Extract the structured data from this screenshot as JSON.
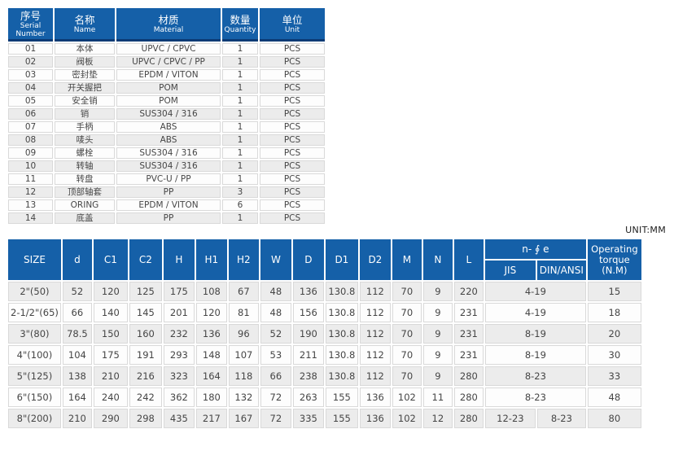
{
  "page": {
    "unit_label": "UNIT:MM",
    "accent_blue": "#1560a8",
    "header_underline_navy": "#0c3b75",
    "stripe_gray": "#ececec"
  },
  "parts_table": {
    "headers": [
      {
        "zh": "序号",
        "en": "Serial Number"
      },
      {
        "zh": "名称",
        "en": "Name"
      },
      {
        "zh": "材质",
        "en": "Material"
      },
      {
        "zh": "数量",
        "en": "Quantity"
      },
      {
        "zh": "单位",
        "en": "Unit"
      }
    ],
    "rows": [
      [
        "01",
        "本体",
        "UPVC / CPVC",
        "1",
        "PCS"
      ],
      [
        "02",
        "阀板",
        "UPVC / CPVC / PP",
        "1",
        "PCS"
      ],
      [
        "03",
        "密封垫",
        "EPDM / VITON",
        "1",
        "PCS"
      ],
      [
        "04",
        "开关握把",
        "POM",
        "1",
        "PCS"
      ],
      [
        "05",
        "安全销",
        "POM",
        "1",
        "PCS"
      ],
      [
        "06",
        "销",
        "SUS304 / 316",
        "1",
        "PCS"
      ],
      [
        "07",
        "手柄",
        "ABS",
        "1",
        "PCS"
      ],
      [
        "08",
        "唛头",
        "ABS",
        "1",
        "PCS"
      ],
      [
        "09",
        "螺栓",
        "SUS304 / 316",
        "1",
        "PCS"
      ],
      [
        "10",
        "转轴",
        "SUS304 / 316",
        "1",
        "PCS"
      ],
      [
        "11",
        "转盘",
        "PVC-U / PP",
        "1",
        "PCS"
      ],
      [
        "12",
        "顶部轴套",
        "PP",
        "3",
        "PCS"
      ],
      [
        "13",
        "ORING",
        "EPDM / VITON",
        "6",
        "PCS"
      ],
      [
        "14",
        "底盖",
        "PP",
        "1",
        "PCS"
      ]
    ]
  },
  "dimensions_table": {
    "headers": [
      "SIZE",
      "d",
      "C1",
      "C2",
      "H",
      "H1",
      "H2",
      "W",
      "D",
      "D1",
      "D2",
      "M",
      "N",
      "L"
    ],
    "hole_group": {
      "label": "n- ∮ e",
      "sub": [
        "JIS",
        "DIN/ANSI"
      ]
    },
    "torque_header": "Operating torque (N.M)",
    "rows": [
      {
        "cells": [
          "2\"(50)",
          "52",
          "120",
          "125",
          "175",
          "108",
          "67",
          "48",
          "136",
          "130.8",
          "112",
          "70",
          "9",
          "220"
        ],
        "holes": [
          "4-19"
        ],
        "torque": "15"
      },
      {
        "cells": [
          "2-1/2\"(65)",
          "66",
          "140",
          "145",
          "201",
          "120",
          "81",
          "48",
          "156",
          "130.8",
          "112",
          "70",
          "9",
          "231"
        ],
        "holes": [
          "4-19"
        ],
        "torque": "18"
      },
      {
        "cells": [
          "3\"(80)",
          "78.5",
          "150",
          "160",
          "232",
          "136",
          "96",
          "52",
          "190",
          "130.8",
          "112",
          "70",
          "9",
          "231"
        ],
        "holes": [
          "8-19"
        ],
        "torque": "20"
      },
      {
        "cells": [
          "4\"(100)",
          "104",
          "175",
          "191",
          "293",
          "148",
          "107",
          "53",
          "211",
          "130.8",
          "112",
          "70",
          "9",
          "231"
        ],
        "holes": [
          "8-19"
        ],
        "torque": "30"
      },
      {
        "cells": [
          "5\"(125)",
          "138",
          "210",
          "216",
          "323",
          "164",
          "118",
          "66",
          "238",
          "130.8",
          "112",
          "70",
          "9",
          "280"
        ],
        "holes": [
          "8-23"
        ],
        "torque": "33"
      },
      {
        "cells": [
          "6\"(150)",
          "164",
          "240",
          "242",
          "362",
          "180",
          "132",
          "72",
          "263",
          "155",
          "136",
          "102",
          "11",
          "280"
        ],
        "holes": [
          "8-23"
        ],
        "torque": "48"
      },
      {
        "cells": [
          "8\"(200)",
          "210",
          "290",
          "298",
          "435",
          "217",
          "167",
          "72",
          "335",
          "155",
          "136",
          "102",
          "12",
          "280"
        ],
        "holes": [
          "12-23",
          "8-23"
        ],
        "torque": "80"
      }
    ]
  }
}
